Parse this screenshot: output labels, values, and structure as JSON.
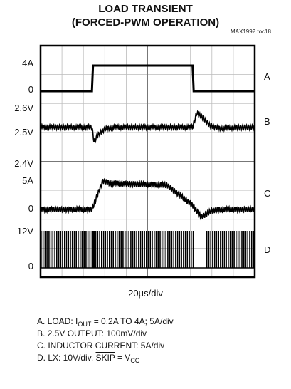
{
  "chart_data": {
    "type": "line",
    "title_line1": "LOAD TRANSIENT",
    "title_line2": "(FORCED-PWM OPERATION)",
    "figure_id": "MAX1992 toc18",
    "x_scale": "20µs/div",
    "x_divisions": 10,
    "channels": [
      {
        "letter": "A",
        "name": "LOAD",
        "y_ticks": [
          "4A",
          "0"
        ],
        "x_div": [
          0,
          2.4,
          2.45,
          7.1,
          7.15,
          10
        ],
        "values_A": [
          0.2,
          0.2,
          4,
          4,
          0.2,
          0.2
        ]
      },
      {
        "letter": "B",
        "name": "2.5V OUTPUT",
        "y_ticks": [
          "2.6V",
          "2.5V",
          "2.4V"
        ],
        "x_div": [
          0,
          2.4,
          2.5,
          2.7,
          3.0,
          3.5,
          7.1,
          7.3,
          7.6,
          7.9,
          8.3,
          10
        ],
        "values_V": [
          2.5,
          2.5,
          2.46,
          2.48,
          2.495,
          2.5,
          2.5,
          2.54,
          2.525,
          2.505,
          2.497,
          2.5
        ]
      },
      {
        "letter": "C",
        "name": "INDUCTOR CURRENT",
        "y_ticks": [
          "5A",
          "0"
        ],
        "x_div": [
          0,
          2.4,
          2.9,
          3.3,
          5.9,
          7.1,
          7.5,
          8.0,
          8.6,
          10
        ],
        "values_A": [
          0.2,
          0.2,
          5.0,
          4.6,
          4.3,
          0.9,
          -1.1,
          0.0,
          0.2,
          0.2
        ]
      },
      {
        "letter": "D",
        "name": "LX",
        "y_ticks": [
          "12V",
          "0"
        ],
        "high_V": 12,
        "low_V": 0,
        "gap_x_div": [
          [
            2.35,
            2.5
          ],
          [
            7.2,
            7.7
          ]
        ]
      }
    ]
  },
  "captions": {
    "a_prefix": "A. LOAD: I",
    "a_sub": "OUT",
    "a_rest": " = 0.2A TO 4A; 5A/div",
    "b": "B. 2.5V OUTPUT: 100mV/div",
    "c": "C. INDUCTOR CURRENT: 5A/div",
    "d_prefix": "D. LX: 10V/div, ",
    "d_over": "SKIP",
    "d_mid": " = V",
    "d_sub": "CC"
  }
}
